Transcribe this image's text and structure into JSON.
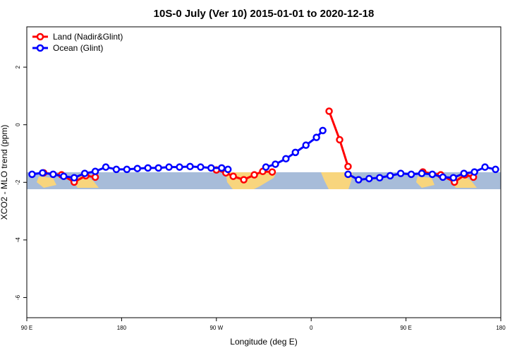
{
  "chart_data": {
    "type": "line",
    "title": "10S-0 July (Ver 10)   2015-01-01 to 2020-12-18",
    "xlabel": "Longitude (deg E)",
    "ylabel": "XCO2 - MLO trend (ppm)",
    "xlim": [
      90,
      540
    ],
    "ylim": [
      -6.7,
      3.4
    ],
    "xticks": [
      {
        "value": 90,
        "label": "90 E"
      },
      180,
      {
        "value": 270,
        "label": "90 W"
      },
      {
        "value": 360,
        "label": "0"
      },
      {
        "value": 450,
        "label": "90 E"
      },
      {
        "value": 540,
        "label": "180"
      }
    ],
    "yticks": [
      2,
      0,
      -2,
      -4,
      -6
    ],
    "legend": "top-left",
    "series": [
      {
        "name": "Land (Nadir&Glint)",
        "color": "#ff0000",
        "x": [
          106,
          123,
          135,
          146,
          155,
          null,
          270,
          279,
          286,
          296,
          306,
          314,
          323,
          null,
          377,
          387,
          395,
          null,
          466,
          483,
          496,
          506,
          514
        ],
        "values": [
          -1.67,
          -1.74,
          -1.99,
          -1.77,
          -1.82,
          null,
          -1.57,
          -1.67,
          -1.79,
          -1.91,
          -1.74,
          -1.62,
          -1.64,
          null,
          0.47,
          -0.52,
          -1.45,
          null,
          -1.64,
          -1.74,
          -1.99,
          -1.74,
          -1.82
        ]
      },
      {
        "name": "Ocean (Glint)",
        "color": "#0000ff",
        "x": [
          95,
          105,
          115,
          125,
          135,
          145,
          155,
          165,
          175,
          185,
          195,
          205,
          215,
          225,
          235,
          245,
          255,
          265,
          275,
          281,
          null,
          317,
          326,
          336,
          345,
          355,
          365,
          371,
          null,
          395,
          405,
          415,
          425,
          435,
          445,
          455,
          465,
          475,
          485,
          495,
          505,
          515,
          525,
          535
        ],
        "values": [
          -1.72,
          -1.67,
          -1.72,
          -1.79,
          -1.84,
          -1.69,
          -1.62,
          -1.47,
          -1.55,
          -1.55,
          -1.52,
          -1.5,
          -1.5,
          -1.47,
          -1.47,
          -1.45,
          -1.47,
          -1.5,
          -1.5,
          -1.55,
          null,
          -1.47,
          -1.37,
          -1.18,
          -0.96,
          -0.71,
          -0.44,
          -0.2,
          null,
          -1.72,
          -1.91,
          -1.87,
          -1.84,
          -1.77,
          -1.69,
          -1.72,
          -1.69,
          -1.72,
          -1.82,
          -1.84,
          -1.69,
          -1.64,
          -1.47,
          -1.55
        ]
      }
    ]
  }
}
